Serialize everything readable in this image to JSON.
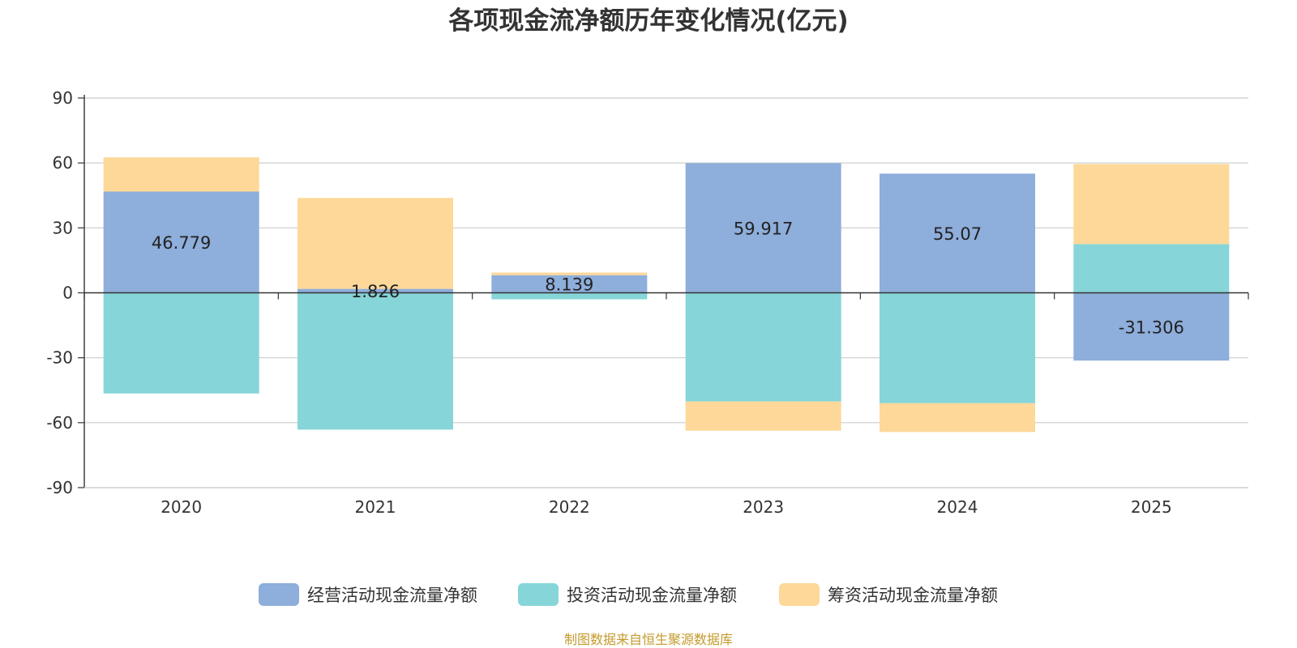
{
  "chart_data": {
    "type": "bar",
    "stacked": true,
    "title": "各项现金流净额历年变化情况(亿元)",
    "categories": [
      "2020",
      "2021",
      "2022",
      "2023",
      "2024",
      "2025"
    ],
    "ylim": [
      -90,
      90
    ],
    "yticks": [
      90,
      60,
      30,
      0,
      -30,
      -60,
      -90
    ],
    "grid": true,
    "legend_position": "bottom-center",
    "series": [
      {
        "name": "经营活动现金流量净额",
        "color": "#8eaedb",
        "values": [
          46.779,
          1.826,
          8.139,
          59.917,
          55.07,
          -31.306
        ]
      },
      {
        "name": "投资活动现金流量净额",
        "color": "#86d5d8",
        "values": [
          -46.5,
          -63.2,
          -3.0,
          -50.2,
          -51.0,
          22.5
        ]
      },
      {
        "name": "筹资活动现金流量净额",
        "color": "#fdd899",
        "values": [
          15.8,
          42.0,
          1.2,
          -13.5,
          -13.3,
          37.0
        ]
      }
    ],
    "data_labels": [
      "46.779",
      "1.826",
      "8.139",
      "59.917",
      "55.07",
      "-31.306"
    ]
  },
  "footer": {
    "source": "制图数据来自恒生聚源数据库"
  }
}
